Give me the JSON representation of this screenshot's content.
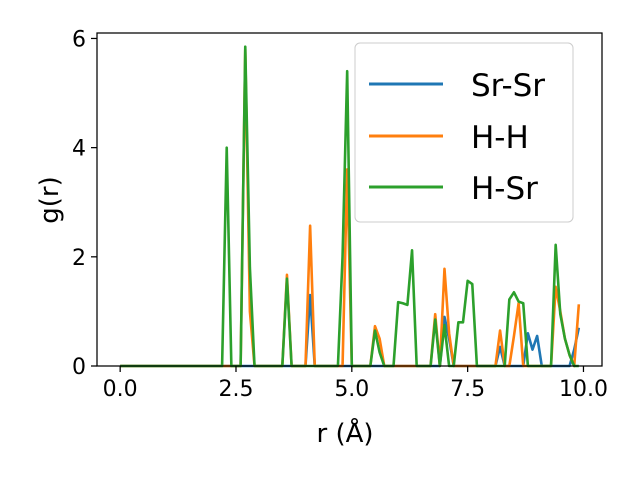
{
  "chart_data": {
    "type": "line",
    "xlabel": "r (Å)",
    "ylabel": "g(r)",
    "xlim": [
      -0.5,
      10.4
    ],
    "ylim": [
      0,
      6.1
    ],
    "xticks": [
      0.0,
      2.5,
      5.0,
      7.5,
      10.0
    ],
    "xtick_labels": [
      "0.0",
      "2.5",
      "5.0",
      "7.5",
      "10.0"
    ],
    "yticks": [
      0,
      2,
      4,
      6
    ],
    "ytick_labels": [
      "0",
      "2",
      "4",
      "6"
    ],
    "grid": false,
    "legend_position": "top-right",
    "x": [
      0.0,
      0.1,
      0.2,
      0.3,
      0.4,
      0.5,
      0.6,
      0.7,
      0.8,
      0.9,
      1.0,
      1.1,
      1.2,
      1.3,
      1.4,
      1.5,
      1.6,
      1.7,
      1.8,
      1.9,
      2.0,
      2.1,
      2.2,
      2.3,
      2.4,
      2.5,
      2.6,
      2.7,
      2.8,
      2.9,
      3.0,
      3.1,
      3.2,
      3.3,
      3.4,
      3.5,
      3.6,
      3.7,
      3.8,
      3.9,
      4.0,
      4.1,
      4.2,
      4.3,
      4.4,
      4.5,
      4.6,
      4.7,
      4.8,
      4.9,
      5.0,
      5.1,
      5.2,
      5.3,
      5.4,
      5.5,
      5.6,
      5.7,
      5.8,
      5.9,
      6.0,
      6.1,
      6.2,
      6.3,
      6.4,
      6.5,
      6.6,
      6.7,
      6.8,
      6.9,
      7.0,
      7.1,
      7.2,
      7.3,
      7.4,
      7.5,
      7.6,
      7.7,
      7.8,
      7.9,
      8.0,
      8.1,
      8.2,
      8.3,
      8.4,
      8.5,
      8.6,
      8.7,
      8.8,
      8.9,
      9.0,
      9.1,
      9.2,
      9.3,
      9.4,
      9.5,
      9.6,
      9.7,
      9.8,
      9.9
    ],
    "series": [
      {
        "name": "Sr-Sr",
        "color": "#1f77b4",
        "values": [
          0,
          0,
          0,
          0,
          0,
          0,
          0,
          0,
          0,
          0,
          0,
          0,
          0,
          0,
          0,
          0,
          0,
          0,
          0,
          0,
          0,
          0,
          0,
          0,
          0,
          0,
          0,
          0,
          0,
          0,
          0,
          0,
          0,
          0,
          0,
          0,
          0,
          0,
          0,
          0,
          0,
          1.3,
          0,
          0,
          0,
          0,
          0,
          0,
          0,
          0,
          0,
          0,
          0,
          0,
          0,
          0,
          0,
          0,
          0,
          0,
          0,
          0,
          0,
          0,
          0,
          0,
          0,
          0,
          0,
          0,
          0.9,
          0.5,
          0,
          0,
          0,
          0,
          0,
          0,
          0,
          0,
          0,
          0,
          0.35,
          0,
          0,
          0,
          0,
          0,
          0.6,
          0.3,
          0.55,
          0,
          0,
          0,
          0,
          0,
          0,
          0,
          0.3,
          0.7
        ]
      },
      {
        "name": "H-H",
        "color": "#ff7f0e",
        "values": [
          0,
          0,
          0,
          0,
          0,
          0,
          0,
          0,
          0,
          0,
          0,
          0,
          0,
          0,
          0,
          0,
          0,
          0,
          0,
          0,
          0,
          0,
          0,
          0,
          0,
          0,
          0,
          5.8,
          1.0,
          0,
          0,
          0,
          0,
          0,
          0,
          0,
          1.67,
          0,
          0,
          0,
          0,
          2.57,
          0,
          0,
          0,
          0,
          0,
          0,
          0,
          3.6,
          0,
          0,
          0,
          0,
          0,
          0.73,
          0.5,
          0,
          0,
          0,
          0,
          0,
          0,
          0,
          0,
          0,
          0,
          0,
          0.95,
          0,
          1.78,
          0.6,
          0,
          0,
          0,
          0,
          0,
          0,
          0,
          0,
          0,
          0,
          0.65,
          0,
          0,
          0.55,
          1.15,
          0,
          0,
          0,
          0,
          0,
          0,
          0,
          1.45,
          1.0,
          0.5,
          0.2,
          0,
          1.13
        ]
      },
      {
        "name": "H-Sr",
        "color": "#2ca02c",
        "values": [
          0,
          0,
          0,
          0,
          0,
          0,
          0,
          0,
          0,
          0,
          0,
          0,
          0,
          0,
          0,
          0,
          0,
          0,
          0,
          0,
          0,
          0,
          0,
          4.0,
          0,
          0,
          0,
          5.85,
          1.8,
          0,
          0,
          0,
          0,
          0,
          0,
          0,
          1.6,
          0,
          0,
          0,
          0,
          0,
          0,
          0,
          0,
          0,
          0,
          0,
          2.0,
          5.4,
          0,
          0,
          0,
          0,
          0,
          0.65,
          0.25,
          0,
          0,
          0,
          1.17,
          1.15,
          1.12,
          2.12,
          0,
          0,
          0,
          0,
          0.85,
          0,
          0.75,
          0,
          0,
          0.8,
          0.8,
          1.56,
          1.5,
          0,
          0,
          0,
          0,
          0,
          0,
          0,
          1.22,
          1.35,
          1.18,
          1.15,
          0,
          0,
          0,
          0,
          0,
          0,
          2.22,
          0.95,
          0.5,
          0.2,
          0,
          0
        ]
      }
    ]
  }
}
